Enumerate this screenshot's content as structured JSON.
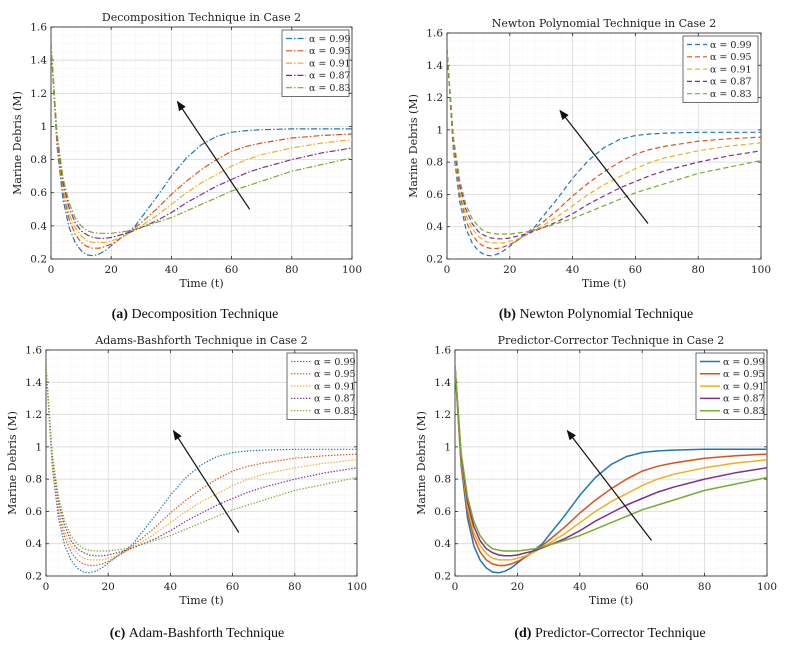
{
  "chart_data": [
    {
      "type": "line",
      "title": "Decomposition Technique in Case 2",
      "caption_label": "(a)",
      "caption_text": "Decomposition Technique",
      "xlabel": "Time (t)",
      "ylabel": "Marine Debris (M)",
      "xlim": [
        0,
        100
      ],
      "ylim": [
        0.2,
        1.6
      ],
      "xticks": [
        0,
        20,
        40,
        60,
        80,
        100
      ],
      "yticks": [
        0.2,
        0.4,
        0.6,
        0.8,
        1,
        1.2,
        1.4,
        1.6
      ],
      "grid": true,
      "legend_position": "top-right",
      "line_style": "dash-dot",
      "x": [
        0,
        2,
        4,
        6,
        8,
        10,
        12,
        14,
        16,
        18,
        20,
        22,
        24,
        26,
        28,
        30,
        35,
        40,
        45,
        50,
        55,
        60,
        65,
        70,
        80,
        90,
        100
      ],
      "series": [
        {
          "name": "α = 0.99",
          "color": "#1f77b4",
          "values": [
            1.5,
            0.88,
            0.56,
            0.39,
            0.3,
            0.25,
            0.225,
            0.22,
            0.23,
            0.25,
            0.28,
            0.31,
            0.34,
            0.37,
            0.4,
            0.45,
            0.57,
            0.7,
            0.81,
            0.89,
            0.94,
            0.965,
            0.975,
            0.98,
            0.985,
            0.985,
            0.985
          ]
        },
        {
          "name": "α = 0.95",
          "color": "#d95319",
          "values": [
            1.5,
            0.9,
            0.6,
            0.44,
            0.35,
            0.3,
            0.275,
            0.265,
            0.265,
            0.275,
            0.29,
            0.31,
            0.335,
            0.36,
            0.39,
            0.42,
            0.5,
            0.59,
            0.67,
            0.74,
            0.8,
            0.85,
            0.88,
            0.9,
            0.93,
            0.945,
            0.955
          ]
        },
        {
          "name": "α = 0.91",
          "color": "#edb120",
          "values": [
            1.5,
            0.92,
            0.63,
            0.47,
            0.39,
            0.34,
            0.31,
            0.3,
            0.3,
            0.3,
            0.31,
            0.32,
            0.335,
            0.355,
            0.38,
            0.4,
            0.46,
            0.53,
            0.6,
            0.66,
            0.71,
            0.76,
            0.8,
            0.83,
            0.87,
            0.9,
            0.92
          ]
        },
        {
          "name": "α = 0.87",
          "color": "#7e2f8e",
          "values": [
            1.5,
            0.94,
            0.66,
            0.51,
            0.42,
            0.37,
            0.345,
            0.33,
            0.325,
            0.325,
            0.33,
            0.34,
            0.35,
            0.36,
            0.375,
            0.39,
            0.43,
            0.48,
            0.54,
            0.59,
            0.64,
            0.68,
            0.72,
            0.75,
            0.8,
            0.84,
            0.87
          ]
        },
        {
          "name": "α = 0.83",
          "color": "#77ac30",
          "values": [
            1.5,
            0.96,
            0.69,
            0.54,
            0.45,
            0.4,
            0.37,
            0.36,
            0.355,
            0.355,
            0.355,
            0.36,
            0.365,
            0.37,
            0.38,
            0.39,
            0.42,
            0.45,
            0.49,
            0.53,
            0.57,
            0.61,
            0.64,
            0.67,
            0.73,
            0.77,
            0.81
          ]
        }
      ]
    },
    {
      "type": "line",
      "title": "Newton Polynomial Technique in Case 2",
      "caption_label": "(b)",
      "caption_text": "Newton Polynomial Technique",
      "xlabel": "Time (t)",
      "ylabel": "Marine Debris (M)",
      "xlim": [
        0,
        100
      ],
      "ylim": [
        0.2,
        1.6
      ],
      "xticks": [
        0,
        20,
        40,
        60,
        80,
        100
      ],
      "yticks": [
        0.2,
        0.4,
        0.6,
        0.8,
        1,
        1.2,
        1.4,
        1.6
      ],
      "grid": true,
      "legend_position": "top-right",
      "line_style": "dashed",
      "x": [
        0,
        2,
        4,
        6,
        8,
        10,
        12,
        14,
        16,
        18,
        20,
        22,
        24,
        26,
        28,
        30,
        35,
        40,
        45,
        50,
        55,
        60,
        65,
        70,
        80,
        90,
        100
      ],
      "series": [
        {
          "name": "α = 0.99",
          "color": "#1f77b4",
          "values": [
            1.5,
            0.88,
            0.56,
            0.39,
            0.3,
            0.25,
            0.225,
            0.22,
            0.23,
            0.25,
            0.28,
            0.31,
            0.34,
            0.37,
            0.4,
            0.45,
            0.57,
            0.7,
            0.81,
            0.89,
            0.94,
            0.965,
            0.975,
            0.98,
            0.985,
            0.985,
            0.985
          ]
        },
        {
          "name": "α = 0.95",
          "color": "#d95319",
          "values": [
            1.5,
            0.9,
            0.6,
            0.44,
            0.35,
            0.3,
            0.275,
            0.265,
            0.265,
            0.275,
            0.29,
            0.31,
            0.335,
            0.36,
            0.39,
            0.42,
            0.5,
            0.59,
            0.67,
            0.74,
            0.8,
            0.85,
            0.88,
            0.9,
            0.93,
            0.945,
            0.955
          ]
        },
        {
          "name": "α = 0.91",
          "color": "#edb120",
          "values": [
            1.5,
            0.92,
            0.63,
            0.47,
            0.39,
            0.34,
            0.31,
            0.3,
            0.3,
            0.3,
            0.31,
            0.32,
            0.335,
            0.355,
            0.38,
            0.4,
            0.46,
            0.53,
            0.6,
            0.66,
            0.71,
            0.76,
            0.8,
            0.83,
            0.87,
            0.9,
            0.92
          ]
        },
        {
          "name": "α = 0.87",
          "color": "#7e2f8e",
          "values": [
            1.5,
            0.94,
            0.66,
            0.51,
            0.42,
            0.37,
            0.345,
            0.33,
            0.325,
            0.325,
            0.33,
            0.34,
            0.35,
            0.36,
            0.375,
            0.39,
            0.43,
            0.48,
            0.54,
            0.59,
            0.64,
            0.68,
            0.72,
            0.75,
            0.8,
            0.84,
            0.87
          ]
        },
        {
          "name": "α = 0.83",
          "color": "#77ac30",
          "values": [
            1.5,
            0.96,
            0.69,
            0.54,
            0.45,
            0.4,
            0.37,
            0.36,
            0.355,
            0.355,
            0.355,
            0.36,
            0.365,
            0.37,
            0.38,
            0.39,
            0.42,
            0.45,
            0.49,
            0.53,
            0.57,
            0.61,
            0.64,
            0.67,
            0.73,
            0.77,
            0.81
          ]
        }
      ]
    },
    {
      "type": "line",
      "title": "Adams-Bashforth Technique in Case 2",
      "caption_label": "(c)",
      "caption_text": "Adam-Bashforth Technique",
      "xlabel": "Time (t)",
      "ylabel": "Marine Debris (M)",
      "xlim": [
        0,
        100
      ],
      "ylim": [
        0.2,
        1.6
      ],
      "xticks": [
        0,
        20,
        40,
        60,
        80,
        100
      ],
      "yticks": [
        0.2,
        0.4,
        0.6,
        0.8,
        1,
        1.2,
        1.4,
        1.6
      ],
      "grid": true,
      "legend_position": "top-right",
      "line_style": "dotted",
      "x": [
        0,
        2,
        4,
        6,
        8,
        10,
        12,
        14,
        16,
        18,
        20,
        22,
        24,
        26,
        28,
        30,
        35,
        40,
        45,
        50,
        55,
        60,
        65,
        70,
        80,
        90,
        100
      ],
      "series": [
        {
          "name": "α = 0.99",
          "color": "#1f77b4",
          "values": [
            1.5,
            0.88,
            0.56,
            0.39,
            0.3,
            0.25,
            0.225,
            0.22,
            0.23,
            0.25,
            0.28,
            0.31,
            0.34,
            0.37,
            0.4,
            0.45,
            0.57,
            0.7,
            0.81,
            0.89,
            0.94,
            0.965,
            0.975,
            0.98,
            0.985,
            0.985,
            0.985
          ]
        },
        {
          "name": "α = 0.95",
          "color": "#d95319",
          "values": [
            1.5,
            0.9,
            0.6,
            0.44,
            0.35,
            0.3,
            0.275,
            0.265,
            0.265,
            0.275,
            0.29,
            0.31,
            0.335,
            0.36,
            0.39,
            0.42,
            0.5,
            0.59,
            0.67,
            0.74,
            0.8,
            0.85,
            0.88,
            0.9,
            0.93,
            0.945,
            0.955
          ]
        },
        {
          "name": "α = 0.91",
          "color": "#edb120",
          "values": [
            1.5,
            0.92,
            0.63,
            0.47,
            0.39,
            0.34,
            0.31,
            0.3,
            0.3,
            0.3,
            0.31,
            0.32,
            0.335,
            0.355,
            0.38,
            0.4,
            0.46,
            0.53,
            0.6,
            0.66,
            0.71,
            0.76,
            0.8,
            0.83,
            0.87,
            0.9,
            0.92
          ]
        },
        {
          "name": "α = 0.87",
          "color": "#7e2f8e",
          "values": [
            1.5,
            0.94,
            0.66,
            0.51,
            0.42,
            0.37,
            0.345,
            0.33,
            0.325,
            0.325,
            0.33,
            0.34,
            0.35,
            0.36,
            0.375,
            0.39,
            0.43,
            0.48,
            0.54,
            0.59,
            0.64,
            0.68,
            0.72,
            0.75,
            0.8,
            0.84,
            0.87
          ]
        },
        {
          "name": "α = 0.83",
          "color": "#77ac30",
          "values": [
            1.5,
            0.96,
            0.69,
            0.54,
            0.45,
            0.4,
            0.37,
            0.36,
            0.355,
            0.355,
            0.355,
            0.36,
            0.365,
            0.37,
            0.38,
            0.39,
            0.42,
            0.45,
            0.49,
            0.53,
            0.57,
            0.61,
            0.64,
            0.67,
            0.73,
            0.77,
            0.81
          ]
        }
      ]
    },
    {
      "type": "line",
      "title": "Predictor-Corrector Technique in Case 2",
      "caption_label": "(d)",
      "caption_text": "Predictor-Corrector Technique",
      "xlabel": "Time (t)",
      "ylabel": "Marine Debris (M)",
      "xlim": [
        0,
        100
      ],
      "ylim": [
        0.2,
        1.6
      ],
      "xticks": [
        0,
        20,
        40,
        60,
        80,
        100
      ],
      "yticks": [
        0.2,
        0.4,
        0.6,
        0.8,
        1,
        1.2,
        1.4,
        1.6
      ],
      "grid": true,
      "legend_position": "top-right",
      "line_style": "solid",
      "x": [
        0,
        2,
        4,
        6,
        8,
        10,
        12,
        14,
        16,
        18,
        20,
        22,
        24,
        26,
        28,
        30,
        35,
        40,
        45,
        50,
        55,
        60,
        65,
        70,
        80,
        90,
        100
      ],
      "series": [
        {
          "name": "α = 0.99",
          "color": "#1f77b4",
          "values": [
            1.5,
            0.88,
            0.56,
            0.39,
            0.3,
            0.25,
            0.225,
            0.22,
            0.23,
            0.25,
            0.28,
            0.31,
            0.34,
            0.37,
            0.4,
            0.45,
            0.57,
            0.7,
            0.81,
            0.89,
            0.94,
            0.965,
            0.975,
            0.98,
            0.985,
            0.985,
            0.985
          ]
        },
        {
          "name": "α = 0.95",
          "color": "#d95319",
          "values": [
            1.5,
            0.9,
            0.6,
            0.44,
            0.35,
            0.3,
            0.275,
            0.265,
            0.265,
            0.275,
            0.29,
            0.31,
            0.335,
            0.36,
            0.39,
            0.42,
            0.5,
            0.59,
            0.67,
            0.74,
            0.8,
            0.85,
            0.88,
            0.9,
            0.93,
            0.945,
            0.955
          ]
        },
        {
          "name": "α = 0.91",
          "color": "#edb120",
          "values": [
            1.5,
            0.92,
            0.63,
            0.47,
            0.39,
            0.34,
            0.31,
            0.3,
            0.3,
            0.3,
            0.31,
            0.32,
            0.335,
            0.355,
            0.38,
            0.4,
            0.46,
            0.53,
            0.6,
            0.66,
            0.71,
            0.76,
            0.8,
            0.83,
            0.87,
            0.9,
            0.92
          ]
        },
        {
          "name": "α = 0.87",
          "color": "#7e2f8e",
          "values": [
            1.5,
            0.94,
            0.66,
            0.51,
            0.42,
            0.37,
            0.345,
            0.33,
            0.325,
            0.325,
            0.33,
            0.34,
            0.35,
            0.36,
            0.375,
            0.39,
            0.43,
            0.48,
            0.54,
            0.59,
            0.64,
            0.68,
            0.72,
            0.75,
            0.8,
            0.84,
            0.87
          ]
        },
        {
          "name": "α = 0.83",
          "color": "#77ac30",
          "values": [
            1.5,
            0.96,
            0.69,
            0.54,
            0.45,
            0.4,
            0.37,
            0.36,
            0.355,
            0.355,
            0.355,
            0.36,
            0.365,
            0.37,
            0.38,
            0.39,
            0.42,
            0.45,
            0.49,
            0.53,
            0.57,
            0.61,
            0.64,
            0.67,
            0.73,
            0.77,
            0.81
          ]
        }
      ]
    }
  ]
}
